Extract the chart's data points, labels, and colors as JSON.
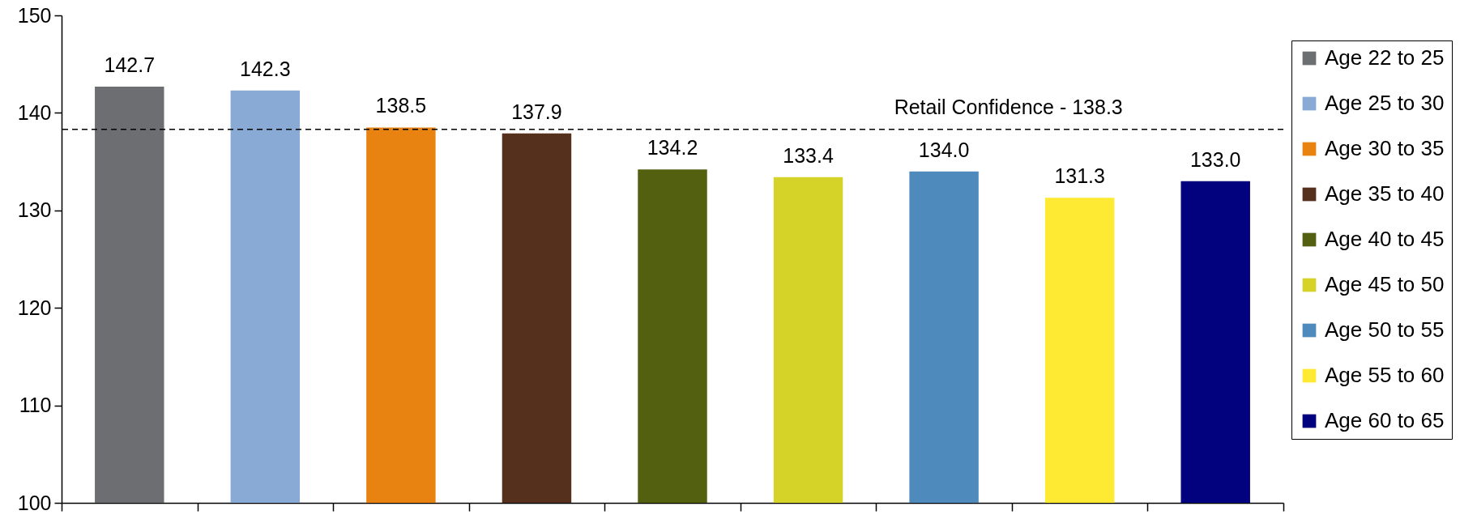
{
  "chart_data": {
    "type": "bar",
    "categories": [
      null,
      null,
      null,
      null,
      null,
      null,
      null,
      null,
      null
    ],
    "series": [
      {
        "name": "Age 22 to 25",
        "color": "#6d6e72",
        "values": [
          142.7,
          null,
          null,
          null,
          null,
          null,
          null,
          null,
          null
        ],
        "value_labels": [
          "142.7",
          null,
          null,
          null,
          null,
          null,
          null,
          null,
          null
        ]
      },
      {
        "name": "Age 25 to 30",
        "color": "#88aad5",
        "values": [
          null,
          142.3,
          null,
          null,
          null,
          null,
          null,
          null,
          null
        ],
        "value_labels": [
          null,
          "142.3",
          null,
          null,
          null,
          null,
          null,
          null,
          null
        ]
      },
      {
        "name": "Age 30 to 35",
        "color": "#e88210",
        "values": [
          null,
          null,
          138.5,
          null,
          null,
          null,
          null,
          null,
          null
        ],
        "value_labels": [
          null,
          null,
          "138.5",
          null,
          null,
          null,
          null,
          null,
          null
        ]
      },
      {
        "name": "Age 35 to 40",
        "color": "#55301d",
        "values": [
          null,
          null,
          null,
          137.9,
          null,
          null,
          null,
          null,
          null
        ],
        "value_labels": [
          null,
          null,
          null,
          "137.9",
          null,
          null,
          null,
          null,
          null
        ]
      },
      {
        "name": "Age 40 to 45",
        "color": "#536010",
        "values": [
          null,
          null,
          null,
          null,
          134.2,
          null,
          null,
          null,
          null
        ],
        "value_labels": [
          null,
          null,
          null,
          null,
          "134.2",
          null,
          null,
          null,
          null
        ]
      },
      {
        "name": "Age 45 to 50",
        "color": "#d5d328",
        "values": [
          null,
          null,
          null,
          null,
          null,
          133.4,
          null,
          null,
          null
        ],
        "value_labels": [
          null,
          null,
          null,
          null,
          null,
          "133.4",
          null,
          null,
          null
        ]
      },
      {
        "name": "Age 50 to 55",
        "color": "#4f8abd",
        "values": [
          null,
          null,
          null,
          null,
          null,
          null,
          134.0,
          null,
          null
        ],
        "value_labels": [
          null,
          null,
          null,
          null,
          null,
          null,
          "134.0",
          null,
          null
        ]
      },
      {
        "name": "Age 55 to 60",
        "color": "#feea32",
        "values": [
          null,
          null,
          null,
          null,
          null,
          null,
          null,
          131.3,
          null
        ],
        "value_labels": [
          null,
          null,
          null,
          null,
          null,
          null,
          null,
          "131.3",
          null
        ]
      },
      {
        "name": "Age 60 to 65",
        "color": "#02027f",
        "values": [
          null,
          null,
          null,
          null,
          null,
          null,
          null,
          null,
          133.0
        ],
        "value_labels": [
          null,
          null,
          null,
          null,
          null,
          null,
          null,
          null,
          "133.0"
        ]
      }
    ],
    "ylim": [
      100,
      150
    ],
    "yticks": [
      100,
      110,
      120,
      130,
      140,
      150
    ],
    "tick_labels": "y",
    "legend": "right",
    "ref_lines": [
      {
        "axis": "y",
        "value": 138.3,
        "label": "Retail Confidence - 138.3",
        "line_style": "dashed",
        "color": "#000000"
      }
    ]
  }
}
